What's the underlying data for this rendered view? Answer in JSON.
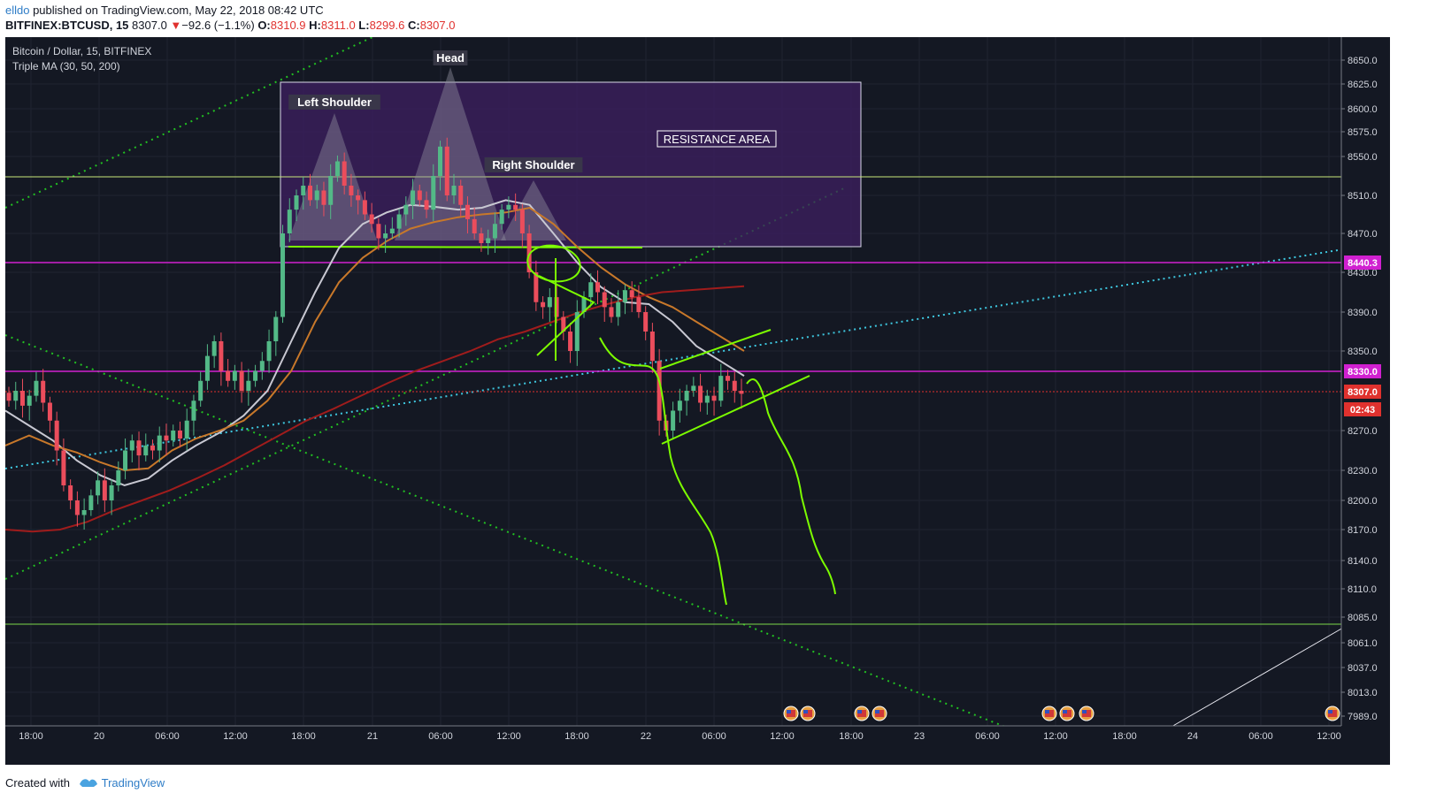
{
  "header": {
    "user": "elldo",
    "published": " published on TradingView.com, May 22, 2018 08:42 UTC",
    "symbol": "BITFINEX:BTCUSD, 15",
    "last": "8307.0",
    "change": "−92.6 (−1.1%)",
    "o_label": "O:",
    "o": "8310.9",
    "h_label": "H:",
    "h": "8311.0",
    "l_label": "L:",
    "l": "8299.6",
    "c_label": "C:",
    "c": "8307.0"
  },
  "footer": {
    "created": "Created with",
    "brand": "TradingView"
  },
  "colors": {
    "background": "#141823",
    "grid": "#1f2330",
    "up": "#53b987",
    "down": "#eb4d5c",
    "ma30": "#c8c8d2",
    "ma50": "#c8782a",
    "ma200": "#a01c1c",
    "annotation_green": "#7cfc00",
    "magenta": "#d020d0",
    "cyan_dotted": "#3ec8e0"
  },
  "chart_data": {
    "type": "candlestick",
    "title": "Bitcoin / Dollar, 15, BITFINEX",
    "indicator": "Triple MA (30, 50, 200)",
    "y_axis": {
      "ticks": [
        "8650.0",
        "8625.0",
        "8600.0",
        "8575.0",
        "8550.0",
        "8510.0",
        "8470.0",
        "8430.0",
        "8390.0",
        "8350.0",
        "8270.0",
        "8230.0",
        "8200.0",
        "8170.0",
        "8140.0",
        "8110.0",
        "8085.0",
        "8061.0",
        "8037.0",
        "8013.0",
        "7989.0"
      ],
      "badges": [
        {
          "text": "8440.3",
          "color": "#d020d0",
          "value": 8440.3
        },
        {
          "text": "8330.0",
          "color": "#d020d0",
          "value": 8330
        },
        {
          "text": "8307.0",
          "color": "#e0312e",
          "value": 8307
        },
        {
          "text": "02:43",
          "color": "#e0312e",
          "value": 8290
        }
      ]
    },
    "x_axis": {
      "ticks": [
        "18:00",
        "20",
        "06:00",
        "12:00",
        "18:00",
        "21",
        "06:00",
        "12:00",
        "18:00",
        "22",
        "06:00",
        "12:00",
        "18:00",
        "23",
        "06:00",
        "12:00",
        "18:00",
        "24",
        "06:00",
        "12:00"
      ]
    },
    "annotations": {
      "labels": [
        "Head",
        "Left Shoulder",
        "Right Shoulder"
      ],
      "resistance": "RESISTANCE AREA",
      "resistance_range": [
        8455,
        8628
      ],
      "horizontal_levels": [
        8530,
        8456,
        8440.3,
        8330,
        8307,
        8079
      ]
    },
    "candles_close": [
      8300,
      8310,
      8295,
      8305,
      8320,
      8298,
      8280,
      8250,
      8215,
      8200,
      8185,
      8190,
      8205,
      8220,
      8200,
      8215,
      8230,
      8250,
      8260,
      8245,
      8255,
      8250,
      8265,
      8260,
      8270,
      8262,
      8280,
      8300,
      8320,
      8345,
      8360,
      8330,
      8320,
      8330,
      8310,
      8320,
      8330,
      8340,
      8360,
      8385,
      8470,
      8495,
      8510,
      8520,
      8505,
      8515,
      8500,
      8530,
      8545,
      8520,
      8510,
      8505,
      8490,
      8480,
      8465,
      8470,
      8475,
      8490,
      8500,
      8515,
      8505,
      8495,
      8530,
      8560,
      8510,
      8520,
      8500,
      8485,
      8470,
      8460,
      8465,
      8480,
      8495,
      8500,
      8495,
      8470,
      8430,
      8400,
      8395,
      8405,
      8385,
      8370,
      8350,
      8390,
      8405,
      8420,
      8410,
      8395,
      8385,
      8400,
      8412,
      8405,
      8390,
      8370,
      8340,
      8280,
      8270,
      8290,
      8300,
      8310,
      8315,
      8298,
      8305,
      8300,
      8325,
      8320,
      8310,
      8307
    ],
    "moving_averages": [
      {
        "name": "MA 30",
        "color": "#c8c8d2",
        "values": [
          8290,
          8275,
          8260,
          8240,
          8225,
          8215,
          8222,
          8240,
          8255,
          8268,
          8285,
          8310,
          8360,
          8410,
          8455,
          8480,
          8492,
          8500,
          8498,
          8495,
          8497,
          8505,
          8500,
          8470,
          8440,
          8415,
          8400,
          8398,
          8380,
          8355,
          8340,
          8325
        ]
      },
      {
        "name": "MA 50",
        "color": "#c8782a",
        "values": [
          8255,
          8265,
          8255,
          8248,
          8238,
          8230,
          8232,
          8250,
          8262,
          8270,
          8280,
          8300,
          8330,
          8380,
          8420,
          8445,
          8462,
          8475,
          8482,
          8487,
          8490,
          8492,
          8497,
          8480,
          8456,
          8435,
          8418,
          8405,
          8395,
          8380,
          8365,
          8350
        ]
      },
      {
        "name": "MA 200",
        "color": "#a01c1c",
        "values": [
          8170,
          8168,
          8170,
          8178,
          8190,
          8200,
          8210,
          8222,
          8235,
          8250,
          8265,
          8280,
          8292,
          8305,
          8318,
          8330,
          8340,
          8350,
          8362,
          8370,
          8380,
          8390,
          8398,
          8405,
          8410,
          8412,
          8414,
          8416
        ]
      }
    ]
  }
}
